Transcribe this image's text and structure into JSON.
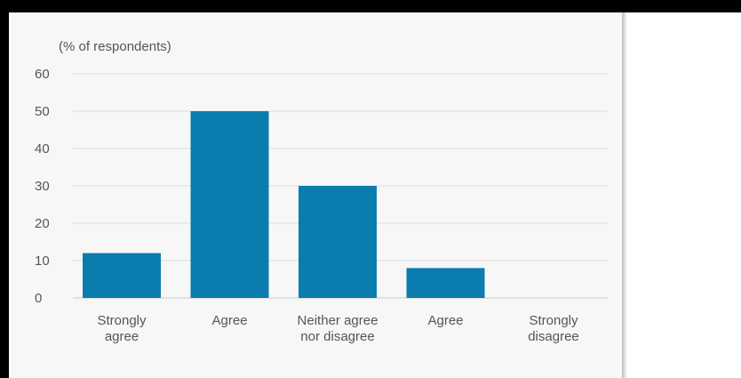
{
  "chart_data": {
    "type": "bar",
    "ylabel": "(% of respondents)",
    "categories": [
      [
        "Strongly",
        "agree"
      ],
      [
        "Agree"
      ],
      [
        "Neither agree",
        "nor disagree"
      ],
      [
        "Agree"
      ],
      [
        "Strongly",
        "disagree"
      ]
    ],
    "values": [
      12,
      50,
      30,
      8,
      0
    ],
    "ylim": [
      0,
      60
    ],
    "yticks": [
      0,
      10,
      20,
      30,
      40,
      50,
      60
    ],
    "grid": true,
    "bar_color": "#0b7cae",
    "grid_color": "#dcdcdc"
  }
}
